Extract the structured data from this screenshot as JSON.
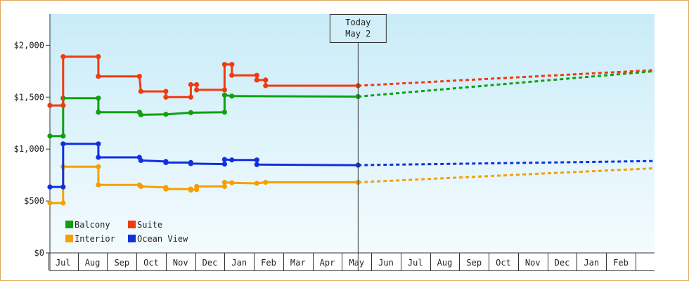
{
  "chart_data": {
    "type": "line",
    "today": {
      "line1": "Today",
      "line2": "May 2"
    },
    "y_axis": {
      "ylim": [
        0,
        2300
      ],
      "ticks": [
        {
          "value": 0,
          "label": "$0"
        },
        {
          "value": 500,
          "label": "$500"
        },
        {
          "value": 1000,
          "label": "$1,000"
        },
        {
          "value": 1500,
          "label": "$1,500"
        },
        {
          "value": 2000,
          "label": "$2,000"
        }
      ]
    },
    "x_axis": {
      "months": [
        "Jul",
        "Aug",
        "Sep",
        "Oct",
        "Nov",
        "Dec",
        "Jan",
        "Feb",
        "Mar",
        "Apr",
        "May",
        "Jun",
        "Jul",
        "Aug",
        "Sep",
        "Oct",
        "Nov",
        "Dec",
        "Jan",
        "Feb"
      ],
      "range_months": [
        -0.45,
        20.15
      ],
      "today_month": 10.05
    },
    "series": [
      {
        "name": "Balcony",
        "color": "#10a010",
        "points": [
          [
            -0.45,
            1125
          ],
          [
            0.0,
            1125
          ],
          [
            0.0,
            1490
          ],
          [
            1.2,
            1490
          ],
          [
            1.2,
            1355
          ],
          [
            2.6,
            1355
          ],
          [
            2.65,
            1330
          ],
          [
            3.5,
            1335
          ],
          [
            4.35,
            1350
          ],
          [
            5.5,
            1355
          ],
          [
            5.5,
            1520
          ],
          [
            5.75,
            1510
          ],
          [
            10.05,
            1505
          ]
        ],
        "forecast": [
          [
            10.05,
            1505
          ],
          [
            20.15,
            1750
          ]
        ]
      },
      {
        "name": "Suite",
        "color": "#f03a10",
        "points": [
          [
            -0.45,
            1420
          ],
          [
            0.0,
            1420
          ],
          [
            0.0,
            1890
          ],
          [
            1.2,
            1890
          ],
          [
            1.2,
            1700
          ],
          [
            2.6,
            1700
          ],
          [
            2.65,
            1555
          ],
          [
            3.5,
            1555
          ],
          [
            3.5,
            1500
          ],
          [
            4.35,
            1500
          ],
          [
            4.35,
            1620
          ],
          [
            4.55,
            1620
          ],
          [
            4.55,
            1570
          ],
          [
            5.5,
            1570
          ],
          [
            5.5,
            1815
          ],
          [
            5.75,
            1815
          ],
          [
            5.75,
            1710
          ],
          [
            6.6,
            1710
          ],
          [
            6.6,
            1665
          ],
          [
            6.9,
            1665
          ],
          [
            6.9,
            1610
          ],
          [
            10.05,
            1610
          ]
        ],
        "forecast": [
          [
            10.05,
            1610
          ],
          [
            20.15,
            1760
          ]
        ]
      },
      {
        "name": "Interior",
        "color": "#f5a000",
        "points": [
          [
            -0.45,
            480
          ],
          [
            0.0,
            480
          ],
          [
            0.0,
            830
          ],
          [
            1.2,
            830
          ],
          [
            1.2,
            655
          ],
          [
            2.6,
            655
          ],
          [
            2.65,
            640
          ],
          [
            3.5,
            630
          ],
          [
            3.5,
            615
          ],
          [
            4.35,
            615
          ],
          [
            4.35,
            605
          ],
          [
            4.55,
            610
          ],
          [
            4.55,
            640
          ],
          [
            5.5,
            640
          ],
          [
            5.5,
            680
          ],
          [
            5.75,
            675
          ],
          [
            6.6,
            670
          ],
          [
            6.9,
            680
          ],
          [
            10.05,
            680
          ]
        ],
        "forecast": [
          [
            10.05,
            680
          ],
          [
            20.15,
            815
          ]
        ]
      },
      {
        "name": "Ocean View",
        "color": "#1030e0",
        "points": [
          [
            -0.45,
            635
          ],
          [
            0.0,
            635
          ],
          [
            0.0,
            1050
          ],
          [
            1.2,
            1050
          ],
          [
            1.2,
            920
          ],
          [
            2.6,
            920
          ],
          [
            2.65,
            890
          ],
          [
            3.5,
            880
          ],
          [
            3.5,
            870
          ],
          [
            4.35,
            870
          ],
          [
            4.35,
            860
          ],
          [
            5.5,
            855
          ],
          [
            5.5,
            900
          ],
          [
            5.75,
            895
          ],
          [
            6.6,
            895
          ],
          [
            6.6,
            850
          ],
          [
            10.05,
            845
          ]
        ],
        "forecast": [
          [
            10.05,
            845
          ],
          [
            20.15,
            885
          ]
        ]
      }
    ],
    "legend": [
      {
        "name": "Balcony",
        "color": "#10a010"
      },
      {
        "name": "Suite",
        "color": "#f03a10"
      },
      {
        "name": "Interior",
        "color": "#f5a000"
      },
      {
        "name": "Ocean View",
        "color": "#1030e0"
      }
    ]
  }
}
